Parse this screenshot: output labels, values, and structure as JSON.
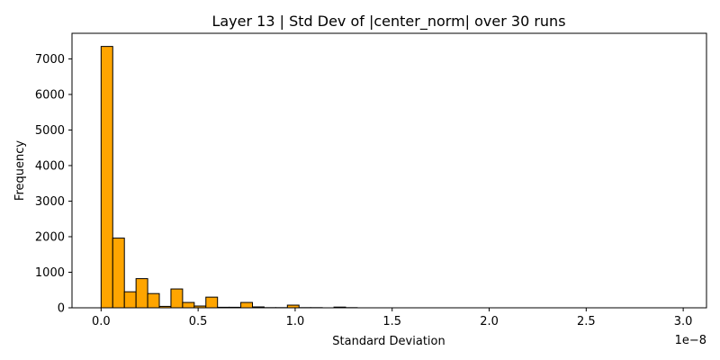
{
  "chart_data": {
    "type": "bar",
    "title": "Layer 13 | Std Dev of |center_norm| over 30 runs",
    "xlabel": "Standard Deviation",
    "ylabel": "Frequency",
    "x_offset_label": "1e−8",
    "xlim": [
      -0.15,
      3.12
    ],
    "ylim": [
      0,
      7720
    ],
    "grid": false,
    "bar_color": "#ffa500",
    "edge_color": "#000000",
    "bin_start": 0.0,
    "bin_width": 0.06,
    "counts": [
      7350,
      1960,
      450,
      820,
      400,
      40,
      530,
      150,
      50,
      300,
      15,
      15,
      150,
      25,
      5,
      5,
      75,
      5,
      5,
      0,
      20,
      5,
      0,
      0,
      0,
      0,
      0,
      0,
      0,
      0,
      0,
      0,
      0,
      0,
      0,
      0,
      0,
      0,
      0,
      0,
      0,
      0,
      0,
      0,
      0,
      0,
      0,
      0,
      0,
      0
    ],
    "x_ticks": [
      {
        "value": 0.0,
        "label": "0.0"
      },
      {
        "value": 0.5,
        "label": "0.5"
      },
      {
        "value": 1.0,
        "label": "1.0"
      },
      {
        "value": 1.5,
        "label": "1.5"
      },
      {
        "value": 2.0,
        "label": "2.0"
      },
      {
        "value": 2.5,
        "label": "2.5"
      },
      {
        "value": 3.0,
        "label": "3.0"
      }
    ],
    "y_ticks": [
      {
        "value": 0,
        "label": "0"
      },
      {
        "value": 1000,
        "label": "1000"
      },
      {
        "value": 2000,
        "label": "2000"
      },
      {
        "value": 3000,
        "label": "3000"
      },
      {
        "value": 4000,
        "label": "4000"
      },
      {
        "value": 5000,
        "label": "5000"
      },
      {
        "value": 6000,
        "label": "6000"
      },
      {
        "value": 7000,
        "label": "7000"
      }
    ]
  }
}
